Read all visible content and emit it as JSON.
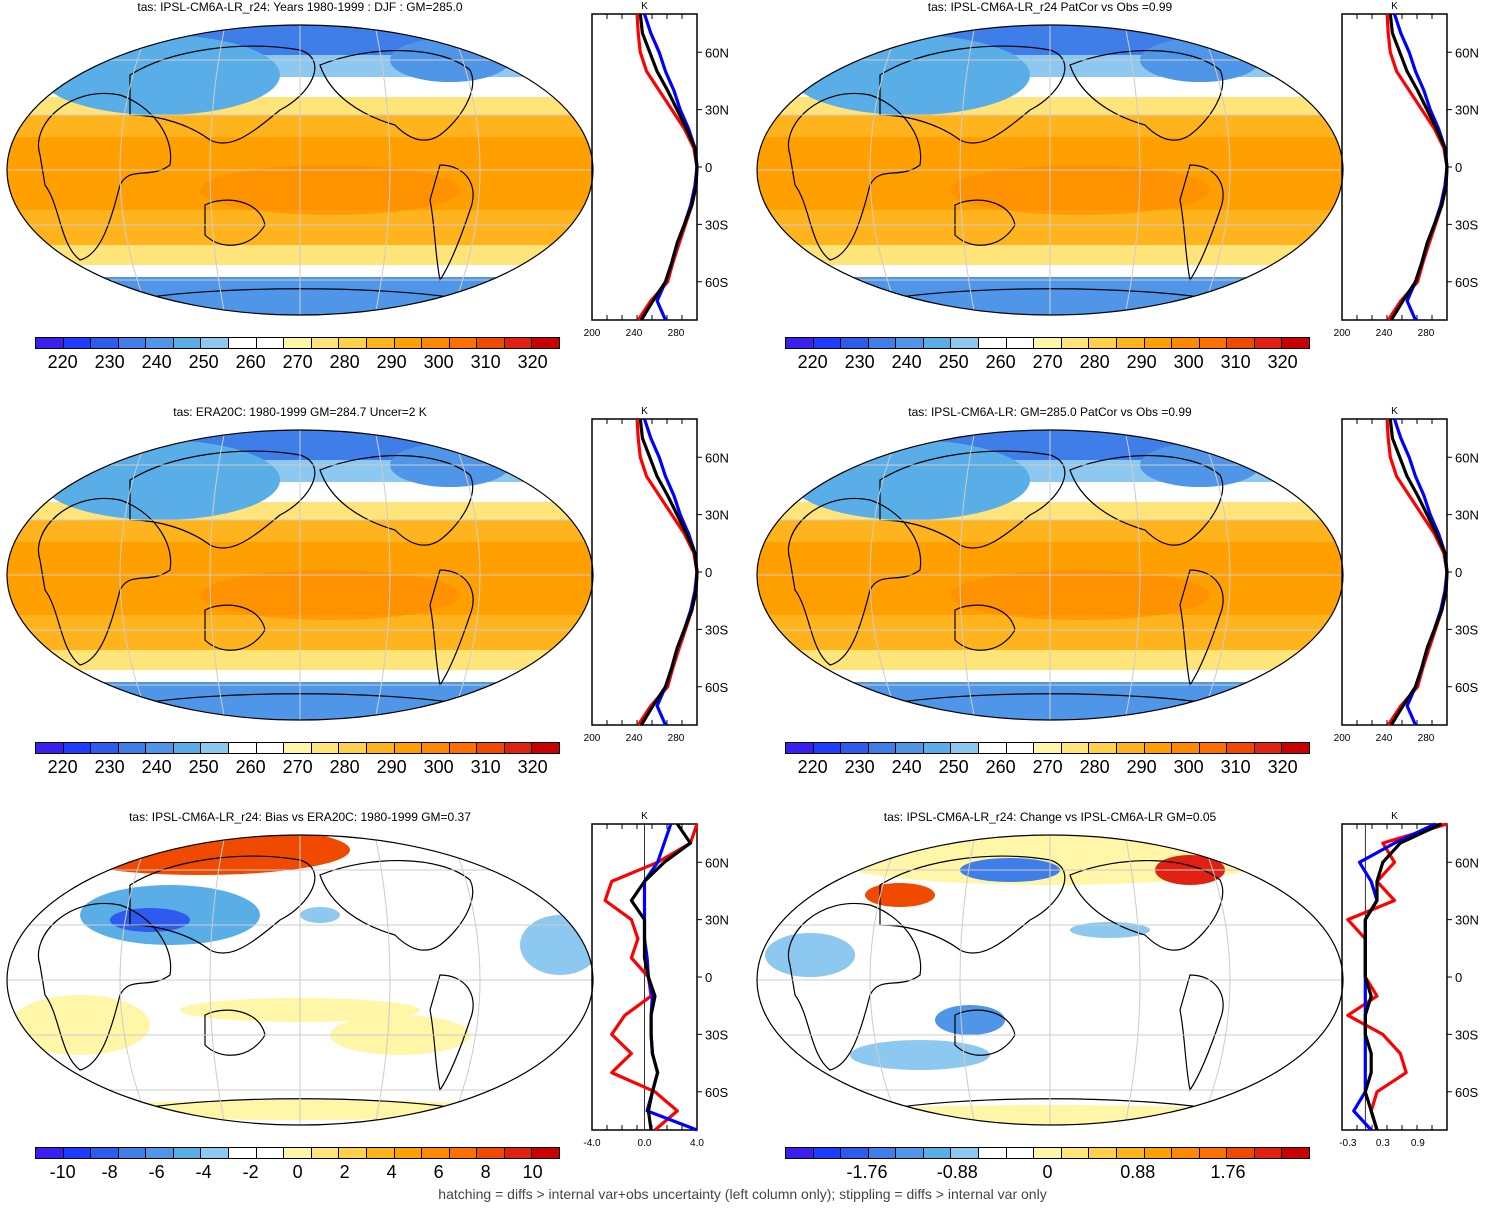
{
  "footer": "hatching = diffs > internal var+obs uncertainty (left column only); stippling = diffs > internal var only",
  "profile_lat_labels": [
    "60N",
    "30N",
    "0",
    "30S",
    "60S"
  ],
  "profile_unit": "K",
  "colors": {
    "abs_scale": [
      "#3b1ff0",
      "#1e3cff",
      "#2d5bf0",
      "#3f7de8",
      "#4f96e8",
      "#5aaee8",
      "#8cc8f0",
      "#ffffff",
      "#ffffff",
      "#fff6a8",
      "#ffe47a",
      "#ffd04a",
      "#ffb41e",
      "#ffa000",
      "#ff8800",
      "#ff6e00",
      "#f04a00",
      "#e02010",
      "#c80000"
    ],
    "diff_scale": [
      "#3b1ff0",
      "#1e3cff",
      "#2d5bf0",
      "#3f7de8",
      "#4f96e8",
      "#5aaee8",
      "#8cc8f0",
      "#ffffff",
      "#ffffff",
      "#fff6a8",
      "#ffe47a",
      "#ffd04a",
      "#ffb41e",
      "#ffa000",
      "#ff8800",
      "#ff6e00",
      "#f04a00",
      "#e02010",
      "#c80000"
    ],
    "model_line": "#000000",
    "obs_line": "#ff0000",
    "ref_line": "#0000ff"
  },
  "panels": [
    {
      "id": "p1",
      "title": "tas: IPSL-CM6A-LR_r24: Years 1980-1999 : DJF : GM=285.0",
      "cbar_labels": [
        "220",
        "230",
        "240",
        "250",
        "260",
        "270",
        "280",
        "290",
        "300",
        "310",
        "320"
      ],
      "profile_ticks": [
        "200",
        "240",
        "280"
      ],
      "hatched": true
    },
    {
      "id": "p2",
      "title": "tas: IPSL-CM6A-LR_r24 PatCor vs Obs =0.99",
      "cbar_labels": [
        "220",
        "230",
        "240",
        "250",
        "260",
        "270",
        "280",
        "290",
        "300",
        "310",
        "320"
      ],
      "profile_ticks": [
        "200",
        "240",
        "280"
      ],
      "hatched": false
    },
    {
      "id": "p3",
      "title": "tas: ERA20C: 1980-1999 GM=284.7 Uncer=2 K",
      "cbar_labels": [
        "220",
        "230",
        "240",
        "250",
        "260",
        "270",
        "280",
        "290",
        "300",
        "310",
        "320"
      ],
      "profile_ticks": [
        "200",
        "240",
        "280"
      ],
      "hatched": true
    },
    {
      "id": "p4",
      "title": "tas: IPSL-CM6A-LR: GM=285.0 PatCor vs Obs =0.99",
      "cbar_labels": [
        "220",
        "230",
        "240",
        "250",
        "260",
        "270",
        "280",
        "290",
        "300",
        "310",
        "320"
      ],
      "profile_ticks": [
        "200",
        "240",
        "280"
      ],
      "hatched": false
    },
    {
      "id": "p5",
      "title": "tas: IPSL-CM6A-LR_r24: Bias vs ERA20C: 1980-1999 GM=0.37",
      "cbar_labels": [
        "-10",
        "-8",
        "-6",
        "-4",
        "-2",
        "0",
        "2",
        "4",
        "6",
        "8",
        "10"
      ],
      "profile_ticks": [
        "-4.0",
        "0.0",
        "4.0"
      ],
      "hatched": true
    },
    {
      "id": "p6",
      "title": "tas: IPSL-CM6A-LR_r24: Change vs IPSL-CM6A-LR GM=0.05",
      "cbar_labels": [
        "-1.76",
        "-0.88",
        "0",
        "0.88",
        "1.76"
      ],
      "profile_ticks": [
        "-0.3",
        "0.3",
        "0.9"
      ],
      "hatched": false
    }
  ],
  "chart_data": [
    {
      "type": "heatmap",
      "title": "tas: IPSL-CM6A-LR_r24: Years 1980-1999 : DJF : GM=285.0",
      "colorbar": {
        "values": [
          220,
          230,
          240,
          250,
          260,
          270,
          280,
          290,
          300,
          310,
          320
        ],
        "units": ""
      },
      "zonal_profile": {
        "ylabels": [
          "60N",
          "30N",
          "0",
          "30S",
          "60S"
        ],
        "xticks": [
          200,
          240,
          280
        ],
        "xlim": [
          200,
          300
        ],
        "unit": "K",
        "lat": [
          80,
          70,
          60,
          50,
          40,
          30,
          20,
          10,
          0,
          -10,
          -20,
          -30,
          -40,
          -50,
          -60,
          -70,
          -80
        ],
        "series": [
          {
            "color": "black",
            "values": [
              246,
              248,
              255,
              262,
              272,
              281,
              290,
              298,
              300,
              299,
              295,
              288,
              281,
              276,
              270,
              258,
              247
            ]
          },
          {
            "color": "blue",
            "values": [
              250,
              256,
              264,
              270,
              278,
              284,
              292,
              298,
              300,
              298,
              294,
              288,
              281,
              276,
              270,
              262,
              270
            ]
          },
          {
            "color": "red",
            "values": [
              243,
              244,
              246,
              252,
              264,
              276,
              288,
              297,
              300,
              299,
              295,
              289,
              283,
              277,
              272,
              256,
              244
            ]
          }
        ]
      }
    },
    {
      "type": "heatmap",
      "title": "tas: IPSL-CM6A-LR_r24 PatCor vs Obs =0.99",
      "colorbar": {
        "values": [
          220,
          230,
          240,
          250,
          260,
          270,
          280,
          290,
          300,
          310,
          320
        ],
        "units": ""
      },
      "zonal_profile": {
        "ylabels": [
          "60N",
          "30N",
          "0",
          "30S",
          "60S"
        ],
        "xticks": [
          200,
          240,
          280
        ],
        "xlim": [
          200,
          300
        ],
        "unit": "K",
        "lat": [
          80,
          70,
          60,
          50,
          40,
          30,
          20,
          10,
          0,
          -10,
          -20,
          -30,
          -40,
          -50,
          -60,
          -70,
          -80
        ],
        "series": [
          {
            "color": "black",
            "values": [
              246,
              248,
              255,
              262,
              272,
              281,
              290,
              298,
              300,
              299,
              295,
              288,
              281,
              276,
              270,
              258,
              247
            ]
          },
          {
            "color": "blue",
            "values": [
              250,
              256,
              264,
              270,
              278,
              284,
              292,
              298,
              300,
              298,
              294,
              288,
              281,
              276,
              270,
              262,
              270
            ]
          },
          {
            "color": "red",
            "values": [
              243,
              244,
              246,
              252,
              264,
              276,
              288,
              297,
              300,
              299,
              295,
              289,
              283,
              277,
              272,
              256,
              244
            ]
          }
        ]
      }
    },
    {
      "type": "heatmap",
      "title": "tas: ERA20C: 1980-1999 GM=284.7 Uncer=2 K",
      "colorbar": {
        "values": [
          220,
          230,
          240,
          250,
          260,
          270,
          280,
          290,
          300,
          310,
          320
        ],
        "units": ""
      },
      "zonal_profile": {
        "ylabels": [
          "60N",
          "30N",
          "0",
          "30S",
          "60S"
        ],
        "xticks": [
          200,
          240,
          280
        ],
        "xlim": [
          200,
          300
        ],
        "unit": "K",
        "lat": [
          80,
          70,
          60,
          50,
          40,
          30,
          20,
          10,
          0,
          -10,
          -20,
          -30,
          -40,
          -50,
          -60,
          -70,
          -80
        ],
        "series": [
          {
            "color": "black",
            "values": [
              246,
              248,
              255,
              262,
              272,
              281,
              290,
              298,
              300,
              299,
              295,
              288,
              281,
              276,
              270,
              258,
              247
            ]
          },
          {
            "color": "blue",
            "values": [
              250,
              256,
              264,
              270,
              278,
              284,
              292,
              298,
              300,
              298,
              294,
              288,
              281,
              276,
              270,
              262,
              270
            ]
          },
          {
            "color": "red",
            "values": [
              243,
              244,
              246,
              252,
              264,
              276,
              288,
              297,
              300,
              299,
              295,
              289,
              283,
              277,
              272,
              256,
              244
            ]
          }
        ]
      }
    },
    {
      "type": "heatmap",
      "title": "tas: IPSL-CM6A-LR: GM=285.0 PatCor vs Obs =0.99",
      "colorbar": {
        "values": [
          220,
          230,
          240,
          250,
          260,
          270,
          280,
          290,
          300,
          310,
          320
        ],
        "units": ""
      },
      "zonal_profile": {
        "ylabels": [
          "60N",
          "30N",
          "0",
          "30S",
          "60S"
        ],
        "xticks": [
          200,
          240,
          280
        ],
        "xlim": [
          200,
          300
        ],
        "unit": "K",
        "lat": [
          80,
          70,
          60,
          50,
          40,
          30,
          20,
          10,
          0,
          -10,
          -20,
          -30,
          -40,
          -50,
          -60,
          -70,
          -80
        ],
        "series": [
          {
            "color": "black",
            "values": [
              246,
              248,
              255,
              262,
              272,
              281,
              290,
              298,
              300,
              299,
              295,
              288,
              281,
              276,
              270,
              258,
              247
            ]
          },
          {
            "color": "blue",
            "values": [
              250,
              256,
              264,
              270,
              278,
              284,
              292,
              298,
              300,
              298,
              294,
              288,
              281,
              276,
              270,
              262,
              270
            ]
          },
          {
            "color": "red",
            "values": [
              243,
              244,
              246,
              252,
              264,
              276,
              288,
              297,
              300,
              299,
              295,
              289,
              283,
              277,
              272,
              256,
              244
            ]
          }
        ]
      }
    },
    {
      "type": "heatmap",
      "title": "tas: IPSL-CM6A-LR_r24: Bias vs ERA20C: 1980-1999 GM=0.37",
      "colorbar": {
        "values": [
          -10,
          -8,
          -6,
          -4,
          -2,
          0,
          2,
          4,
          6,
          8,
          10
        ],
        "units": ""
      },
      "zonal_profile": {
        "ylabels": [
          "60N",
          "30N",
          "0",
          "30S",
          "60S"
        ],
        "xticks": [
          -4.0,
          0.0,
          4.0
        ],
        "xlim": [
          -4,
          4
        ],
        "unit": "K",
        "lat": [
          80,
          70,
          60,
          50,
          40,
          30,
          20,
          10,
          0,
          -10,
          -20,
          -30,
          -40,
          -50,
          -60,
          -70,
          -80
        ],
        "series": [
          {
            "color": "black",
            "values": [
              2.5,
              3.5,
              1.5,
              0.0,
              -1.0,
              0.0,
              0.0,
              0.0,
              0.3,
              0.8,
              0.5,
              0.5,
              0.6,
              1.0,
              0.6,
              0.3,
              0.5
            ]
          },
          {
            "color": "blue",
            "values": [
              2.0,
              1.5,
              1.0,
              0.0,
              0.0,
              0.0,
              0.0,
              0.2,
              0.3,
              0.6,
              0.5,
              0.5,
              0.6,
              1.0,
              0.6,
              0.2,
              4.0
            ]
          },
          {
            "color": "red",
            "values": [
              4.0,
              3.5,
              1.0,
              -2.5,
              -3.0,
              -1.0,
              -0.5,
              -1.0,
              0.3,
              0.5,
              -1.5,
              -2.5,
              -1.0,
              -2.5,
              0.8,
              2.5,
              0.8
            ]
          }
        ]
      }
    },
    {
      "type": "heatmap",
      "title": "tas: IPSL-CM6A-LR_r24: Change vs IPSL-CM6A-LR GM=0.05",
      "colorbar": {
        "values": [
          -1.76,
          -0.88,
          0,
          0.88,
          1.76
        ],
        "units": ""
      },
      "zonal_profile": {
        "ylabels": [
          "60N",
          "30N",
          "0",
          "30S",
          "60S"
        ],
        "xticks": [
          -0.3,
          0.3,
          0.9
        ],
        "xlim": [
          -0.4,
          1.4
        ],
        "unit": "K",
        "lat": [
          80,
          70,
          60,
          50,
          40,
          30,
          20,
          10,
          0,
          -10,
          -20,
          -30,
          -40,
          -50,
          -60,
          -70,
          -80
        ],
        "series": [
          {
            "color": "black",
            "values": [
              1.3,
              0.6,
              0.3,
              0.2,
              0.2,
              0.0,
              0.0,
              0.0,
              0.0,
              0.1,
              0.0,
              0.0,
              0.1,
              0.1,
              0.0,
              0.1,
              0.2
            ]
          },
          {
            "color": "blue",
            "values": [
              1.2,
              0.5,
              -0.1,
              0.1,
              0.2,
              0.0,
              0.0,
              0.0,
              0.0,
              0.0,
              0.0,
              0.0,
              0.0,
              0.0,
              0.0,
              -0.2,
              0.1
            ]
          },
          {
            "color": "red",
            "values": [
              1.4,
              0.3,
              0.5,
              0.2,
              0.5,
              -0.3,
              0.0,
              0.0,
              0.0,
              0.2,
              -0.3,
              0.3,
              0.6,
              0.7,
              0.2,
              0.1,
              0.2
            ]
          }
        ]
      }
    }
  ]
}
